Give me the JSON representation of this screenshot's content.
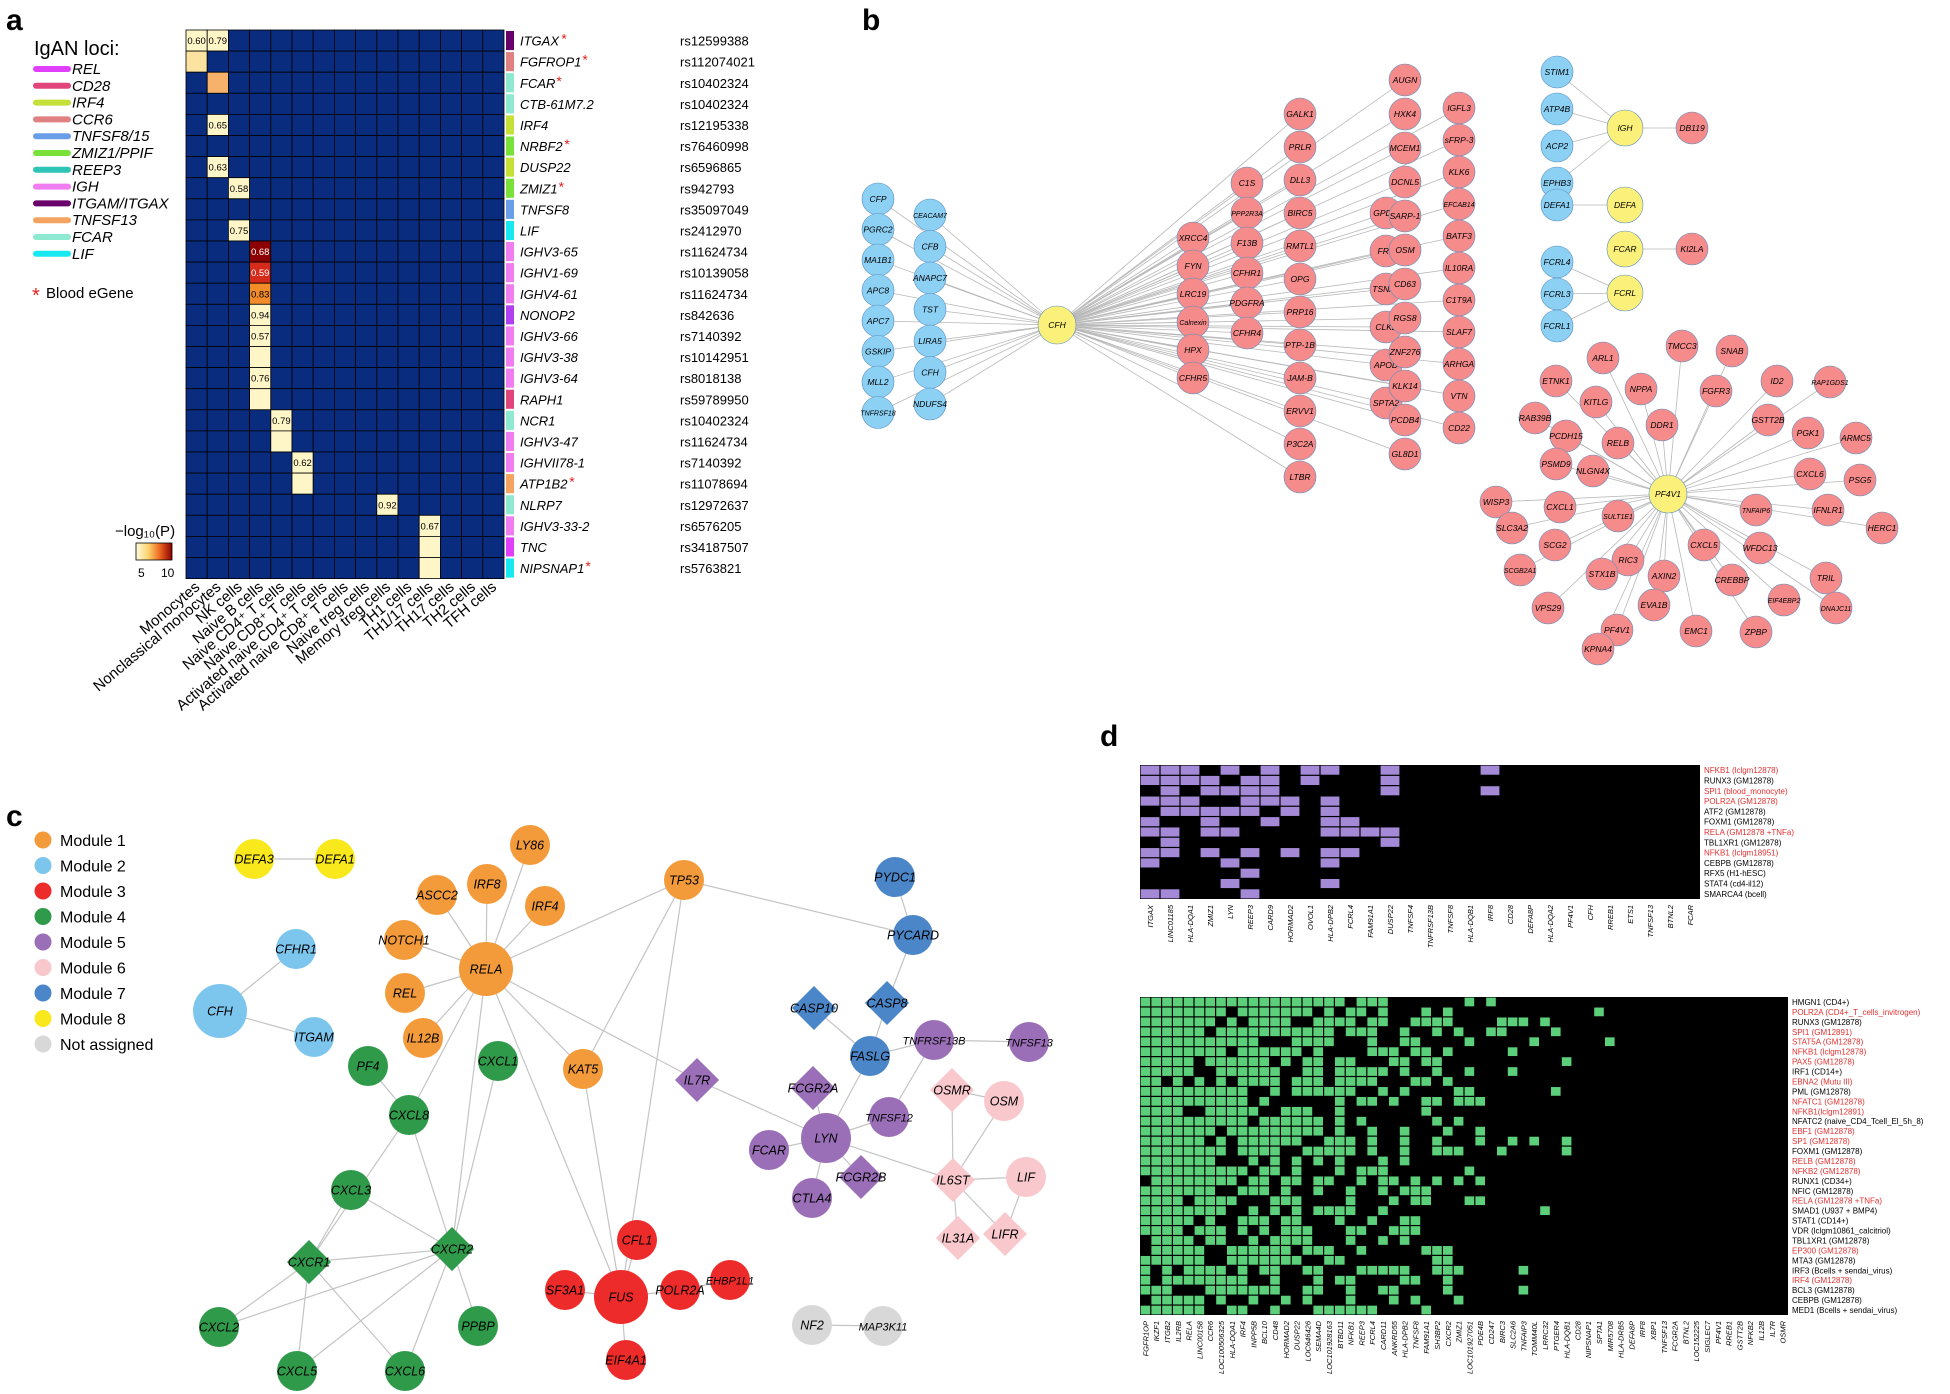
{
  "panels": {
    "a": "a",
    "b": "b",
    "c": "c",
    "d": "d"
  },
  "panel_a": {
    "legend_title": "IgAN loci:",
    "loci": [
      {
        "name": "REL",
        "color": "#e040fb"
      },
      {
        "name": "CD28",
        "color": "#e0457b"
      },
      {
        "name": "IRF4",
        "color": "#c6e03a"
      },
      {
        "name": "CCR6",
        "color": "#e08080"
      },
      {
        "name": "TNFSF8/15",
        "color": "#6a9ee8"
      },
      {
        "name": "ZMIZ1/PPIF",
        "color": "#7ae03a"
      },
      {
        "name": "REEP3",
        "color": "#2ec4b6"
      },
      {
        "name": "IGH",
        "color": "#f07ef0"
      },
      {
        "name": "ITGAM/ITGAX",
        "color": "#6a006a"
      },
      {
        "name": "TNFSF13",
        "color": "#f4a460"
      },
      {
        "name": "FCAR",
        "color": "#8fe8d0"
      },
      {
        "name": "LIF",
        "color": "#18e8f0"
      }
    ],
    "blood_egene_label": "Blood eGene",
    "blood_egene_star": "*",
    "colorbar_label": "−log₁₀(P)",
    "colorbar_ticks": [
      "5",
      "10"
    ],
    "columns": [
      "Monocytes",
      "Nonclassical monocytes",
      "NK cells",
      "Naive B cells",
      "Naive CD4⁺ T cells",
      "Naive CD8⁺ T cells",
      "Activated naive CD4⁺ T cells",
      "Activated naive CD8⁺ T cells",
      "Naive treg cells",
      "Memory treg cells",
      "TH1 cells",
      "TH1/17 cells",
      "TH17 cells",
      "TH2 cells",
      "TFH cells"
    ],
    "rows": [
      {
        "gene": "ITGAX",
        "star": "*",
        "snp": "rs12599388",
        "color": "#6a006a"
      },
      {
        "gene": "FGFROP1",
        "star": "*",
        "snp": "rs112074021",
        "color": "#e08080"
      },
      {
        "gene": "FCAR",
        "star": "*",
        "snp": "rs10402324",
        "color": "#8fe8d0"
      },
      {
        "gene": "CTB-61M7.2",
        "star": "",
        "snp": "rs10402324",
        "color": "#8fe8d0"
      },
      {
        "gene": "IRF4",
        "star": "",
        "snp": "rs12195338",
        "color": "#c6e03a"
      },
      {
        "gene": "NRBF2",
        "star": "*",
        "snp": "rs76460998",
        "color": "#7ae03a"
      },
      {
        "gene": "DUSP22",
        "star": "",
        "snp": "rs6596865",
        "color": "#c6e03a"
      },
      {
        "gene": "ZMIZ1",
        "star": "*",
        "snp": "rs942793",
        "color": "#7ae03a"
      },
      {
        "gene": "TNFSF8",
        "star": "",
        "snp": "rs35097049",
        "color": "#6a9ee8"
      },
      {
        "gene": "LIF",
        "star": "",
        "snp": "rs2412970",
        "color": "#18e8f0"
      },
      {
        "gene": "IGHV3-65",
        "star": "",
        "snp": "rs11624734",
        "color": "#f07ef0"
      },
      {
        "gene": "IGHV1-69",
        "star": "",
        "snp": "rs10139058",
        "color": "#f07ef0"
      },
      {
        "gene": "IGHV4-61",
        "star": "",
        "snp": "rs11624734",
        "color": "#f07ef0"
      },
      {
        "gene": "NONOP2",
        "star": "",
        "snp": "rs842636",
        "color": "#b040f0"
      },
      {
        "gene": "IGHV3-66",
        "star": "",
        "snp": "rs7140392",
        "color": "#f07ef0"
      },
      {
        "gene": "IGHV3-38",
        "star": "",
        "snp": "rs10142951",
        "color": "#f07ef0"
      },
      {
        "gene": "IGHV3-64",
        "star": "",
        "snp": "rs8018138",
        "color": "#f07ef0"
      },
      {
        "gene": "RAPH1",
        "star": "",
        "snp": "rs59789950",
        "color": "#e0457b"
      },
      {
        "gene": "NCR1",
        "star": "",
        "snp": "rs10402324",
        "color": "#8fe8d0"
      },
      {
        "gene": "IGHV3-47",
        "star": "",
        "snp": "rs11624734",
        "color": "#f07ef0"
      },
      {
        "gene": "IGHVII78-1",
        "star": "",
        "snp": "rs7140392",
        "color": "#f07ef0"
      },
      {
        "gene": "ATP1B2",
        "star": "*",
        "snp": "rs11078694",
        "color": "#f4a460"
      },
      {
        "gene": "NLRP7",
        "star": "",
        "snp": "rs12972637",
        "color": "#8fe8d0"
      },
      {
        "gene": "IGHV3-33-2",
        "star": "",
        "snp": "rs6576205",
        "color": "#f07ef0"
      },
      {
        "gene": "TNC",
        "star": "",
        "snp": "rs34187507",
        "color": "#e040fb"
      },
      {
        "gene": "NIPSNAP1",
        "star": "*",
        "snp": "rs5763821",
        "color": "#18e8f0"
      }
    ],
    "cells": [
      {
        "r": 0,
        "c": 0,
        "label": "0.60",
        "fill": "#fff6c8"
      },
      {
        "r": 0,
        "c": 1,
        "label": "0.79",
        "fill": "#fff6c8"
      },
      {
        "r": 1,
        "c": 0,
        "label": "",
        "fill": "#fce3a0"
      },
      {
        "r": 2,
        "c": 1,
        "label": "",
        "fill": "#f6b26b"
      },
      {
        "r": 4,
        "c": 1,
        "label": "0.65",
        "fill": "#fff6c8"
      },
      {
        "r": 6,
        "c": 1,
        "label": "0.63",
        "fill": "#fff6c8"
      },
      {
        "r": 7,
        "c": 2,
        "label": "0.58",
        "fill": "#fff6c8"
      },
      {
        "r": 9,
        "c": 2,
        "label": "0.75",
        "fill": "#fff6c8"
      },
      {
        "r": 10,
        "c": 3,
        "label": "0.68",
        "fill": "#8b0000"
      },
      {
        "r": 11,
        "c": 3,
        "label": "0.59",
        "fill": "#d62a1a"
      },
      {
        "r": 12,
        "c": 3,
        "label": "0.83",
        "fill": "#f28c2a"
      },
      {
        "r": 13,
        "c": 3,
        "label": "0.94",
        "fill": "#fff6c8"
      },
      {
        "r": 14,
        "c": 3,
        "label": "0.57",
        "fill": "#fff6c8"
      },
      {
        "r": 15,
        "c": 3,
        "label": "",
        "fill": "#fff6c8"
      },
      {
        "r": 16,
        "c": 3,
        "label": "0.76",
        "fill": "#fff6c8"
      },
      {
        "r": 17,
        "c": 3,
        "label": "",
        "fill": "#fff6c8"
      },
      {
        "r": 18,
        "c": 4,
        "label": "0.79",
        "fill": "#fff6c8"
      },
      {
        "r": 19,
        "c": 4,
        "label": "",
        "fill": "#fff6c8"
      },
      {
        "r": 20,
        "c": 5,
        "label": "0.62",
        "fill": "#fff6c8"
      },
      {
        "r": 21,
        "c": 5,
        "label": "",
        "fill": "#fff6c8"
      },
      {
        "r": 22,
        "c": 9,
        "label": "0.92",
        "fill": "#fff6c8"
      },
      {
        "r": 23,
        "c": 11,
        "label": "0.67",
        "fill": "#fff6c8"
      },
      {
        "r": 24,
        "c": 11,
        "label": "",
        "fill": "#fff6c8"
      },
      {
        "r": 25,
        "c": 11,
        "label": "",
        "fill": "#fff6c8"
      }
    ]
  },
  "panel_b": {
    "groups": [
      {
        "hub": "CFH",
        "hub_color": "yellow",
        "left": [
          "CFP",
          "PGRC2",
          "MA1B1",
          "APC8",
          "APC7",
          "GSKIP",
          "MLL2",
          "TNFRSF18"
        ],
        "left2": [
          "CEACAM7",
          "CFB",
          "ANAPC7",
          "TST",
          "LIRA5",
          "CFH",
          "NDUFS4"
        ],
        "right1": [
          "XRCC4",
          "FYN",
          "LRC19",
          "Calnexin",
          "HPX",
          "CFHR5"
        ],
        "right2": [
          "C1S",
          "PPP2R3A",
          "F13B",
          "CFHR1",
          "PDGFRA",
          "CFHR4"
        ],
        "right3": [
          "GALK1",
          "PRLR",
          "DLL3",
          "BIRC5",
          "RMTL1",
          "OPG",
          "PRP16",
          "PTP-1B",
          "JAM-B",
          "ERVV1",
          "P3C2A",
          "LTBR"
        ],
        "right4": [
          "GPDIL",
          "FRK",
          "TSNA1",
          "CLK2",
          "APOD",
          "SPTA2"
        ],
        "right5": [
          "AUGN",
          "HXK4",
          "MCEM1",
          "DCNL5",
          "SARP-1",
          "OSM",
          "CD63",
          "RGS8",
          "ZNF276",
          "KLK14",
          "PCDB4",
          "GL8D1"
        ],
        "right6": [
          "IGFL3",
          "sFRP-3",
          "KLK6",
          "EFCAB14",
          "BATF3",
          "IL10RA",
          "C1T9A",
          "SLAF7",
          "ARHGA",
          "VTN",
          "CD22"
        ]
      },
      {
        "hub": "IGH",
        "left": [
          "STIM1",
          "ATP4B",
          "ACP2",
          "EPHB3"
        ],
        "right": [
          "DB119"
        ]
      },
      {
        "hub": "DEFA",
        "left": [
          "DEFA1"
        ]
      },
      {
        "hub": "FCAR",
        "right": [
          "KI2LA"
        ]
      },
      {
        "hub": "FCRL",
        "left": [
          "FCRL4",
          "FCRL3",
          "FCRL1"
        ]
      },
      {
        "hub": "PF4V1",
        "spokes": [
          "ARL1",
          "TMCC3",
          "SNAB",
          "ETNK1",
          "NPPA",
          "FGFR3",
          "ID2",
          "RAP1GDS1",
          "KITLG",
          "GSTT2B",
          "PCDH15",
          "DDR1",
          "RAB39B",
          "RELB",
          "PGK1",
          "ARMC5",
          "PSMD9",
          "NLGN4X",
          "CXCL6",
          "PSG5",
          "WISP3",
          "CXCL1",
          "TNFAIP6",
          "IFNLR1",
          "SULT1E1",
          "SLC3A2",
          "HERC1",
          "SCG2",
          "WFDC13",
          "RIC3",
          "CXCL5",
          "SCGB2A1",
          "TRIL",
          "STX1B",
          "AXIN2",
          "EIF4EBP2",
          "EVA1B",
          "VPS29",
          "DNAJC11",
          "EMC1",
          "PF4V1",
          "ZPBP",
          "CREBBP",
          "KPNA4"
        ]
      }
    ]
  },
  "panel_c": {
    "legend": [
      {
        "name": "Module 1",
        "color": "#f39a3b"
      },
      {
        "name": "Module 2",
        "color": "#7cc6ee"
      },
      {
        "name": "Module 3",
        "color": "#ee2b2b"
      },
      {
        "name": "Module 4",
        "color": "#2f9a4a"
      },
      {
        "name": "Module 5",
        "color": "#9a6fb8"
      },
      {
        "name": "Module 6",
        "color": "#f8c8cc"
      },
      {
        "name": "Module 7",
        "color": "#4a86c8"
      },
      {
        "name": "Module 8",
        "color": "#f8e81c"
      },
      {
        "name": "Not assigned",
        "color": "#d8d8d8"
      }
    ],
    "nodes": [
      {
        "id": "DEFA3",
        "mod": 7,
        "shape": "c"
      },
      {
        "id": "DEFA1",
        "mod": 7,
        "shape": "c"
      },
      {
        "id": "LY86",
        "mod": 0,
        "shape": "c"
      },
      {
        "id": "IRF8",
        "mod": 0,
        "shape": "c"
      },
      {
        "id": "ASCC2",
        "mod": 0,
        "shape": "c"
      },
      {
        "id": "IRF4",
        "mod": 0,
        "shape": "c"
      },
      {
        "id": "NOTCH1",
        "mod": 0,
        "shape": "c"
      },
      {
        "id": "RELA",
        "mod": 0,
        "shape": "c"
      },
      {
        "id": "REL",
        "mod": 0,
        "shape": "c"
      },
      {
        "id": "IL12B",
        "mod": 0,
        "shape": "c"
      },
      {
        "id": "TP53",
        "mod": 0,
        "shape": "c"
      },
      {
        "id": "KAT5",
        "mod": 0,
        "shape": "c"
      },
      {
        "id": "CFHR1",
        "mod": 1,
        "shape": "c"
      },
      {
        "id": "CFH",
        "mod": 1,
        "shape": "c"
      },
      {
        "id": "ITGAM",
        "mod": 1,
        "shape": "c"
      },
      {
        "id": "PF4",
        "mod": 3,
        "shape": "c"
      },
      {
        "id": "CXCL1",
        "mod": 3,
        "shape": "c"
      },
      {
        "id": "CXCL8",
        "mod": 3,
        "shape": "c"
      },
      {
        "id": "CXCL3",
        "mod": 3,
        "shape": "c"
      },
      {
        "id": "CXCR1",
        "mod": 3,
        "shape": "d"
      },
      {
        "id": "CXCR2",
        "mod": 3,
        "shape": "d"
      },
      {
        "id": "CXCL2",
        "mod": 3,
        "shape": "c"
      },
      {
        "id": "PPBP",
        "mod": 3,
        "shape": "c"
      },
      {
        "id": "CXCL5",
        "mod": 3,
        "shape": "c"
      },
      {
        "id": "CXCL6",
        "mod": 3,
        "shape": "c"
      },
      {
        "id": "PYDC1",
        "mod": 6,
        "shape": "c"
      },
      {
        "id": "PYCARD",
        "mod": 6,
        "shape": "c"
      },
      {
        "id": "CASP10",
        "mod": 6,
        "shape": "d"
      },
      {
        "id": "CASP8",
        "mod": 6,
        "shape": "d"
      },
      {
        "id": "FASLG",
        "mod": 6,
        "shape": "c"
      },
      {
        "id": "IL7R",
        "mod": 4,
        "shape": "d"
      },
      {
        "id": "TNFRSF13B",
        "mod": 4,
        "shape": "c"
      },
      {
        "id": "TNFSF13",
        "mod": 4,
        "shape": "c"
      },
      {
        "id": "FCGR2A",
        "mod": 4,
        "shape": "d"
      },
      {
        "id": "TNFSF12",
        "mod": 4,
        "shape": "c"
      },
      {
        "id": "LYN",
        "mod": 4,
        "shape": "c"
      },
      {
        "id": "FCAR",
        "mod": 4,
        "shape": "c"
      },
      {
        "id": "FCGR2B",
        "mod": 4,
        "shape": "d"
      },
      {
        "id": "CTLA4",
        "mod": 4,
        "shape": "c"
      },
      {
        "id": "OSMR",
        "mod": 5,
        "shape": "d"
      },
      {
        "id": "OSM",
        "mod": 5,
        "shape": "c"
      },
      {
        "id": "IL6ST",
        "mod": 5,
        "shape": "d"
      },
      {
        "id": "LIF",
        "mod": 5,
        "shape": "c"
      },
      {
        "id": "LIFR",
        "mod": 5,
        "shape": "d"
      },
      {
        "id": "IL31A",
        "mod": 5,
        "shape": "d"
      },
      {
        "id": "CFL1",
        "mod": 2,
        "shape": "c"
      },
      {
        "id": "SF3A1",
        "mod": 2,
        "shape": "c"
      },
      {
        "id": "FUS",
        "mod": 2,
        "shape": "c"
      },
      {
        "id": "POLR2A",
        "mod": 2,
        "shape": "c"
      },
      {
        "id": "EHBP1L1",
        "mod": 2,
        "shape": "c"
      },
      {
        "id": "EIF4A1",
        "mod": 2,
        "shape": "c"
      },
      {
        "id": "NF2",
        "mod": 8,
        "shape": "c"
      },
      {
        "id": "MAP3K11",
        "mod": 8,
        "shape": "c"
      }
    ]
  },
  "panel_d": {
    "top_rows": [
      {
        "label": "NFKB1 (lclgm12878)",
        "red": true
      },
      {
        "label": "RUNX3 (GM12878)",
        "red": false
      },
      {
        "label": "SPI1 (blood_monocyte)",
        "red": true
      },
      {
        "label": "POLR2A (GM12878)",
        "red": true
      },
      {
        "label": "ATF2 (GM12878)",
        "red": false
      },
      {
        "label": "FOXM1 (GM12878)",
        "red": false
      },
      {
        "label": "RELA (GM12878 +TNFa)",
        "red": true
      },
      {
        "label": "TBL1XR1 (GM12878)",
        "red": false
      },
      {
        "label": "NFKB1 (lclgm18951)",
        "red": true
      },
      {
        "label": "CEBPB (GM12878)",
        "red": false
      },
      {
        "label": "RFX5 (H1-hESC)",
        "red": false
      },
      {
        "label": "STAT4 (cd4-il12)",
        "red": false
      },
      {
        "label": "SMARCA4 (bcell)",
        "red": false
      }
    ],
    "top_cols": [
      "ITGAX",
      "LINC01185",
      "HLA-DQA1",
      "ZMIZ1",
      "LYN",
      "REEP3",
      "CARD9",
      "HORMAD2",
      "OVOL1",
      "HLA-DPB2",
      "FCRL4",
      "FAM91A1",
      "DUSP22",
      "TNFSF4",
      "TNFRSF13B",
      "TNFSF8",
      "HLA-DQB1",
      "IRF8",
      "CD28",
      "DEFA8P",
      "HLA-DQA2",
      "PF4V1",
      "CFH",
      "RREB1",
      "ETS1",
      "TNFSF13",
      "BTNL2",
      "FCAR"
    ],
    "bottom_rows": [
      {
        "label": "HMGN1 (CD4+)",
        "red": false
      },
      {
        "label": "POLR2A (CD4+_T_cells_invitrogen)",
        "red": true
      },
      {
        "label": "RUNX3 (GM12878)",
        "red": false
      },
      {
        "label": "SPI1 (GM12891)",
        "red": true
      },
      {
        "label": "STAT5A (GM12878)",
        "red": true
      },
      {
        "label": "NFKB1 (lclgm12878)",
        "red": true
      },
      {
        "label": "PAX5 (GM12878)",
        "red": true
      },
      {
        "label": "IRF1 (CD14+)",
        "red": false
      },
      {
        "label": "EBNA2 (Mutu III)",
        "red": true
      },
      {
        "label": "PML (GM12878)",
        "red": false
      },
      {
        "label": "NFATC1 (GM12878)",
        "red": true
      },
      {
        "label": "NFKB1(lclgm12891)",
        "red": true
      },
      {
        "label": "NFATC2 (naive_CD4_Tcell_El_5h_8)",
        "red": false
      },
      {
        "label": "EBF1 (GM12878)",
        "red": true
      },
      {
        "label": "SP1 (GM12878)",
        "red": true
      },
      {
        "label": "FOXM1 (GM12878)",
        "red": false
      },
      {
        "label": "RELB (GM12878)",
        "red": true
      },
      {
        "label": "NFKB2 (GM12878)",
        "red": true
      },
      {
        "label": "RUNX1 (CD34+)",
        "red": false
      },
      {
        "label": "NFIC (GM12878)",
        "red": false
      },
      {
        "label": "RELA (GM12878 +TNFa)",
        "red": true
      },
      {
        "label": "SMAD1 (U937 + BMP4)",
        "red": false
      },
      {
        "label": "STAT1 (CD14+)",
        "red": false
      },
      {
        "label": "VDR (lclgm10861_calcitriol)",
        "red": false
      },
      {
        "label": "TBL1XR1 (GM12878)",
        "red": false
      },
      {
        "label": "EP300 (GM12878)",
        "red": true
      },
      {
        "label": "MTA3 (GM12878)",
        "red": false
      },
      {
        "label": "IRF3 (Bcells + sendai_virus)",
        "red": false
      },
      {
        "label": "IRF4 (GM12878)",
        "red": true
      },
      {
        "label": "BCL3 (GM12878)",
        "red": false
      },
      {
        "label": "CEBPB (GM12878)",
        "red": false
      },
      {
        "label": "MED1 (Bcells + sendai_virus)",
        "red": false
      }
    ],
    "bottom_cols": [
      "FGFR1OP",
      "IKZF1",
      "ITGB2",
      "IL2RB",
      "RELA",
      "LINC00158",
      "CCR6",
      "LOC100506325",
      "HLA-DQA1",
      "IRF4",
      "INPP5B",
      "BCL10",
      "CD48",
      "HORMAD2",
      "DUSP22",
      "LOC646426",
      "SEMA4D",
      "LOC101928163",
      "BTBD11",
      "NFKB1",
      "REEP3",
      "FCRL4",
      "CARD11",
      "ANKRD55",
      "HLA-DPB2",
      "TNFSF8",
      "FAM91A1",
      "SH3BP2",
      "CXCR2",
      "ZMIZ1",
      "LOC101927051",
      "PDE4B",
      "CD247",
      "BIRC3",
      "SLC2A6",
      "TNFAIP3",
      "TOMM40L",
      "LRRC32",
      "PTGER4",
      "HLA-DQB1",
      "CD28",
      "NIPSNAP1",
      "SPTA1",
      "MIR5708",
      "HLA-DRB5",
      "DEFA8P",
      "IRF8",
      "XBP1",
      "TNFSF13",
      "FCGR2A",
      "BTNL2",
      "LOC152225",
      "SIGLEC7",
      "PF4V1",
      "RREB1",
      "GSTT2B",
      "NFKB2",
      "IL12B",
      "IL7R",
      "OSMR"
    ]
  }
}
